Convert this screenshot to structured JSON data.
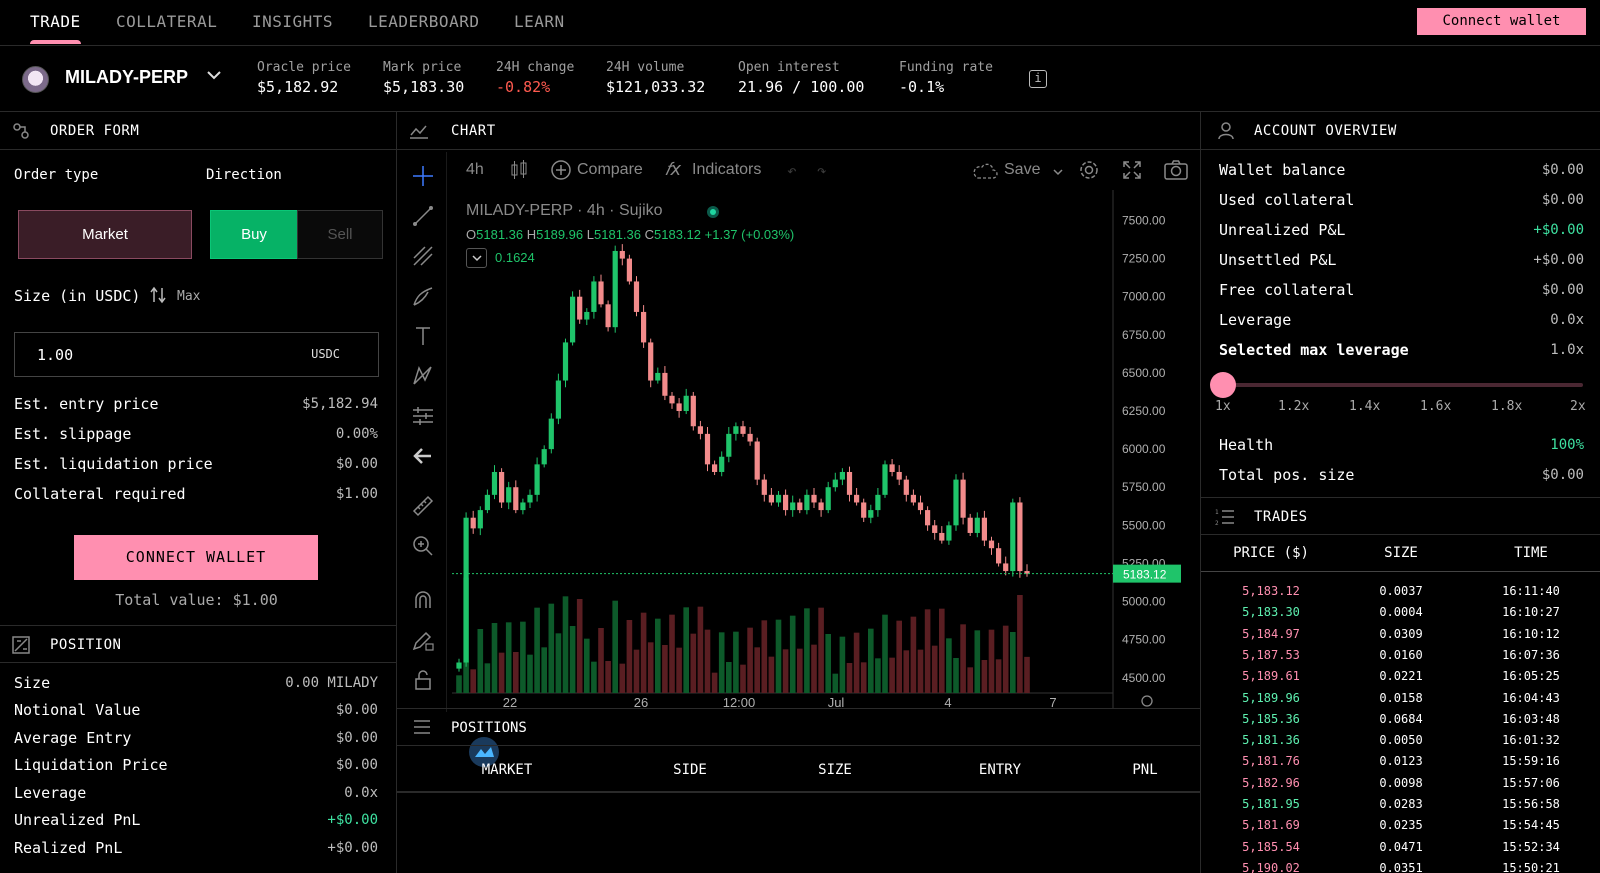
{
  "nav": {
    "tabs": [
      {
        "label": "TRADE",
        "active": true
      },
      {
        "label": "COLLATERAL",
        "active": false
      },
      {
        "label": "INSIGHTS",
        "active": false
      },
      {
        "label": "LEADERBOARD",
        "active": false
      },
      {
        "label": "LEARN",
        "active": false
      }
    ],
    "connect_label": "Connect wallet"
  },
  "market": {
    "name": "MILADY-PERP",
    "stats": [
      {
        "label": "Oracle price",
        "value": "$5,182.92"
      },
      {
        "label": "Mark price",
        "value": "$5,183.30"
      },
      {
        "label": "24H change",
        "value": "-0.82%",
        "negative": true
      },
      {
        "label": "24H volume",
        "value": "$121,033.32"
      },
      {
        "label": "Open interest",
        "value": "21.96 / 100.00"
      },
      {
        "label": "Funding rate",
        "value": "-0.1%"
      }
    ],
    "info_icon": "i"
  },
  "order_form": {
    "title": "ORDER FORM",
    "order_type_label": "Order type",
    "direction_label": "Direction",
    "market_label": "Market",
    "buy_label": "Buy",
    "sell_label": "Sell",
    "size_label": "Size (in USDC)",
    "max_label": "Max",
    "size_value": "1.00",
    "size_unit": "USDC",
    "rows": [
      {
        "label": "Est. entry price",
        "value": "$5,182.94"
      },
      {
        "label": "Est. slippage",
        "value": "0.00%"
      },
      {
        "label": "Est. liquidation price",
        "value": "$0.00"
      },
      {
        "label": "Collateral required",
        "value": "$1.00"
      }
    ],
    "connect_label": "CONNECT WALLET",
    "total_value": "Total value: $1.00"
  },
  "position": {
    "title": "POSITION",
    "rows": [
      {
        "label": "Size",
        "value": "0.00 MILADY"
      },
      {
        "label": "Notional Value",
        "value": "$0.00"
      },
      {
        "label": "Average Entry",
        "value": "$0.00"
      },
      {
        "label": "Liquidation Price",
        "value": "$0.00"
      },
      {
        "label": "Leverage",
        "value": "0.0x"
      },
      {
        "label": "Unrealized PnL",
        "value": "+$0.00",
        "positive": true
      },
      {
        "label": "Realized PnL",
        "value": "+$0.00"
      }
    ]
  },
  "chart": {
    "title": "CHART",
    "toolbar": {
      "interval": "4h",
      "compare": "Compare",
      "indicators": "Indicators",
      "save": "Save"
    },
    "legend": {
      "symbol": "MILADY-PERP · 4h · Sujiko",
      "o": "5181.36",
      "h": "5189.96",
      "l": "5181.36",
      "c": "5183.12",
      "change": "+1.37 (+0.03%)",
      "volume": "0.1624"
    },
    "price_tag": "5183.12",
    "colors": {
      "up": "#1fc46a",
      "down": "#f28b8b",
      "vol_up": "#0d5a2a",
      "vol_down": "#5a1e22"
    }
  },
  "chart_data": {
    "type": "candlestick",
    "y_ticks": [
      "7500.00",
      "7250.00",
      "7000.00",
      "6750.00",
      "6500.00",
      "6250.00",
      "6000.00",
      "5750.00",
      "5500.00",
      "5250.00",
      "5000.00",
      "4750.00",
      "4500.00"
    ],
    "x_ticks": [
      "22",
      "26",
      "12:00",
      "Jul",
      "4",
      "7"
    ],
    "ylim": [
      4400,
      7700
    ],
    "last_price": 5183.12,
    "closes": [
      4600,
      5550,
      5480,
      5600,
      5700,
      5850,
      5650,
      5750,
      5600,
      5650,
      5700,
      5900,
      6000,
      6200,
      6450,
      6700,
      7000,
      6850,
      6900,
      7100,
      6950,
      6800,
      7300,
      7250,
      7100,
      6900,
      6700,
      6450,
      6500,
      6350,
      6300,
      6250,
      6350,
      6150,
      6100,
      5900,
      5850,
      5950,
      6100,
      6150,
      6100,
      6050,
      5800,
      5700,
      5650,
      5700,
      5600,
      5650,
      5600,
      5700,
      5650,
      5600,
      5750,
      5800,
      5850,
      5700,
      5650,
      5550,
      5600,
      5700,
      5900,
      5850,
      5800,
      5700,
      5650,
      5600,
      5500,
      5450,
      5400,
      5500,
      5800,
      5550,
      5450,
      5550,
      5400,
      5350,
      5250,
      5200,
      5650,
      5200,
      5183
    ]
  },
  "positions": {
    "title": "POSITIONS",
    "columns": [
      "MARKET",
      "SIDE",
      "SIZE",
      "ENTRY",
      "PNL"
    ]
  },
  "account": {
    "title": "ACCOUNT OVERVIEW",
    "rows": [
      {
        "label": "Wallet balance",
        "value": "$0.00"
      },
      {
        "label": "Used collateral",
        "value": "$0.00"
      },
      {
        "label": "Unrealized P&L",
        "value": "+$0.00",
        "positive": true
      },
      {
        "label": "Unsettled P&L",
        "value": "+$0.00"
      },
      {
        "label": "Free collateral",
        "value": "$0.00"
      },
      {
        "label": "Leverage",
        "value": "0.0x"
      },
      {
        "label": "Selected max leverage",
        "value": "1.0x"
      }
    ],
    "slider_value": 0,
    "leverage_ticks": [
      "1x",
      "1.2x",
      "1.4x",
      "1.6x",
      "1.8x",
      "2x"
    ],
    "health_label": "Health",
    "health_value": "100%",
    "total_pos_label": "Total pos. size",
    "total_pos_value": "$0.00"
  },
  "trades": {
    "title": "TRADES",
    "columns": [
      "PRICE ($)",
      "SIZE",
      "TIME"
    ],
    "rows": [
      {
        "price": "5,183.12",
        "size": "0.0037",
        "time": "16:11:40",
        "side": "down"
      },
      {
        "price": "5,183.30",
        "size": "0.0004",
        "time": "16:10:27",
        "side": "up"
      },
      {
        "price": "5,184.97",
        "size": "0.0309",
        "time": "16:10:12",
        "side": "down"
      },
      {
        "price": "5,187.53",
        "size": "0.0160",
        "time": "16:07:36",
        "side": "down"
      },
      {
        "price": "5,189.61",
        "size": "0.0221",
        "time": "16:05:25",
        "side": "down"
      },
      {
        "price": "5,189.96",
        "size": "0.0158",
        "time": "16:04:43",
        "side": "up"
      },
      {
        "price": "5,185.36",
        "size": "0.0684",
        "time": "16:03:48",
        "side": "up"
      },
      {
        "price": "5,181.36",
        "size": "0.0050",
        "time": "16:01:32",
        "side": "up"
      },
      {
        "price": "5,181.76",
        "size": "0.0123",
        "time": "15:59:16",
        "side": "down"
      },
      {
        "price": "5,182.96",
        "size": "0.0098",
        "time": "15:57:06",
        "side": "down"
      },
      {
        "price": "5,181.95",
        "size": "0.0283",
        "time": "15:56:58",
        "side": "up"
      },
      {
        "price": "5,181.69",
        "size": "0.0235",
        "time": "15:54:45",
        "side": "down"
      },
      {
        "price": "5,185.54",
        "size": "0.0471",
        "time": "15:52:34",
        "side": "down"
      },
      {
        "price": "5,190.02",
        "size": "0.0351",
        "time": "15:50:21",
        "side": "down"
      }
    ]
  }
}
